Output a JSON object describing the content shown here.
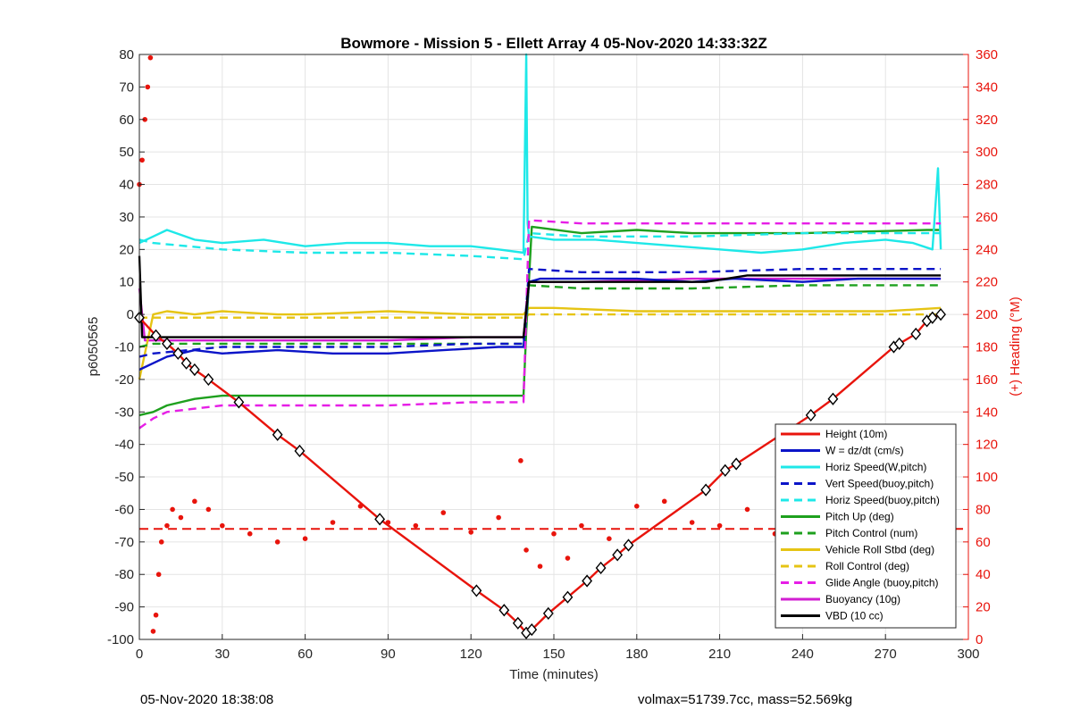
{
  "chart_data": {
    "type": "line",
    "title": "Bowmore - Mission 5 - Ellett Array 4 05-Nov-2020 14:33:32Z",
    "xlabel": "Time (minutes)",
    "ylabel_left": "p6050565",
    "ylabel_right": "(+) Heading (°M)",
    "xlim": [
      0,
      300
    ],
    "ylim_left": [
      -100,
      80
    ],
    "ylim_right": [
      0,
      360
    ],
    "x_ticks": [
      0,
      30,
      60,
      90,
      120,
      150,
      180,
      210,
      240,
      270,
      300
    ],
    "y_ticks_left": [
      80,
      70,
      60,
      50,
      40,
      30,
      20,
      10,
      0,
      -10,
      -20,
      -30,
      -40,
      -50,
      -60,
      -70,
      -80,
      -90,
      -100
    ],
    "y_ticks_right": [
      360,
      340,
      320,
      300,
      280,
      260,
      240,
      220,
      200,
      180,
      160,
      140,
      120,
      100,
      80,
      60,
      40,
      20,
      0
    ],
    "grid": true,
    "legend_position": "bottom-right",
    "colors": {
      "height": "#e8140c",
      "w": "#0b14c8",
      "horiz_speed": "#1ee8e8",
      "pitch": "#1ea01e",
      "roll": "#e6c414",
      "glide": "#e61ee6",
      "buoyancy": "#d21ed2",
      "vbd": "#000000",
      "heading": "#e8140c",
      "right_axis": "#e8140c"
    },
    "series": [
      {
        "name": "Height (10m)",
        "style": "solid",
        "color": "#e8140c",
        "markers": "diamond",
        "x": [
          0,
          6,
          10,
          14,
          17,
          20,
          25,
          36,
          50,
          58,
          87,
          122,
          132,
          137,
          140,
          142,
          148,
          155,
          162,
          167,
          173,
          177,
          205,
          212,
          216,
          243,
          251,
          273,
          275,
          281,
          285,
          287,
          290
        ],
        "y": [
          -1,
          -6.5,
          -9,
          -12,
          -15,
          -17,
          -20,
          -27,
          -37,
          -42,
          -63,
          -85,
          -91,
          -95,
          -98,
          -97,
          -92,
          -87,
          -82,
          -78,
          -74,
          -71,
          -54,
          -48,
          -46,
          -31,
          -26,
          -10,
          -9,
          -6,
          -2,
          -1,
          0
        ]
      },
      {
        "name": "W = dz/dt (cm/s)",
        "style": "solid",
        "color": "#0b14c8",
        "x": [
          0,
          5,
          10,
          20,
          30,
          50,
          70,
          90,
          110,
          130,
          139,
          141,
          145,
          160,
          180,
          200,
          215,
          240,
          260,
          280,
          290
        ],
        "y": [
          -17,
          -15,
          -13,
          -11,
          -12,
          -11,
          -12,
          -12,
          -11,
          -10,
          -10,
          10,
          11,
          11,
          11,
          10,
          11,
          10,
          11,
          11,
          11
        ]
      },
      {
        "name": "Horiz Speed(W,pitch)",
        "style": "solid",
        "color": "#1ee8e8",
        "x": [
          0,
          5,
          10,
          20,
          30,
          45,
          60,
          75,
          90,
          105,
          120,
          130,
          139,
          140,
          140.5,
          141,
          150,
          165,
          180,
          195,
          210,
          225,
          240,
          255,
          270,
          280,
          287,
          289,
          290
        ],
        "y": [
          22,
          24,
          26,
          23,
          22,
          23,
          21,
          22,
          22,
          21,
          21,
          20,
          19,
          80,
          28,
          24,
          23,
          23,
          22,
          21,
          20,
          19,
          20,
          22,
          23,
          22,
          20,
          45,
          20
        ]
      },
      {
        "name": "Vert Speed(buoy,pitch)",
        "style": "dashed",
        "color": "#0b14c8",
        "x": [
          0,
          5,
          30,
          60,
          90,
          120,
          139,
          141,
          160,
          200,
          240,
          290
        ],
        "y": [
          -13,
          -12,
          -10,
          -10,
          -10,
          -9,
          -9,
          14,
          13,
          13,
          14,
          14
        ]
      },
      {
        "name": "Horiz Speed(buoy,pitch)",
        "style": "dashed",
        "color": "#1ee8e8",
        "x": [
          0,
          5,
          30,
          60,
          90,
          120,
          139,
          141,
          160,
          200,
          240,
          290
        ],
        "y": [
          23,
          22,
          20,
          19,
          19,
          18,
          17,
          25,
          24,
          24,
          25,
          25
        ]
      },
      {
        "name": "Pitch Up (deg)",
        "style": "solid",
        "color": "#1ea01e",
        "x": [
          0,
          5,
          10,
          20,
          30,
          50,
          60,
          90,
          120,
          139,
          140,
          142,
          160,
          180,
          200,
          240,
          285,
          290
        ],
        "y": [
          -31,
          -30,
          -28,
          -26,
          -25,
          -25,
          -25,
          -25,
          -25,
          -25,
          -5,
          27,
          25,
          26,
          25,
          25,
          26,
          26
        ]
      },
      {
        "name": "Pitch Control (num)",
        "style": "dashed",
        "color": "#1ea01e",
        "x": [
          0,
          5,
          30,
          60,
          90,
          139,
          141,
          160,
          200,
          240,
          290
        ],
        "y": [
          -10,
          -9,
          -9,
          -9,
          -9,
          -9,
          9,
          8,
          8,
          9,
          9
        ]
      },
      {
        "name": "Vehicle Roll Stbd (deg)",
        "style": "solid",
        "color": "#e6c414",
        "x": [
          0,
          5,
          10,
          20,
          30,
          50,
          60,
          90,
          120,
          139,
          141,
          150,
          180,
          210,
          240,
          270,
          290
        ],
        "y": [
          -20,
          0,
          1,
          0,
          1,
          0,
          0,
          1,
          0,
          0,
          2,
          2,
          1,
          1,
          1,
          1,
          2
        ]
      },
      {
        "name": "Roll Control (deg)",
        "style": "dashed",
        "color": "#e6c414",
        "x": [
          0,
          30,
          60,
          90,
          120,
          139,
          141,
          180,
          210,
          240,
          270,
          290
        ],
        "y": [
          -1,
          -1,
          -1,
          -1,
          -1,
          -1,
          0,
          0,
          0,
          0,
          0,
          0
        ]
      },
      {
        "name": "Glide Angle (buoy,pitch)",
        "style": "dashed",
        "color": "#e61ee6",
        "x": [
          0,
          5,
          10,
          30,
          60,
          90,
          120,
          139,
          141,
          160,
          200,
          240,
          290
        ],
        "y": [
          -35,
          -32,
          -30,
          -28,
          -28,
          -28,
          -27,
          -27,
          29,
          28,
          28,
          28,
          28
        ]
      },
      {
        "name": "Buoyancy (10g)",
        "style": "solid",
        "color": "#d21ed2",
        "x": [
          0,
          2,
          10,
          30,
          60,
          90,
          120,
          139,
          141,
          160,
          200,
          240,
          290
        ],
        "y": [
          8,
          -8,
          -8,
          -8,
          -8,
          -8,
          -7,
          -7,
          10,
          10,
          11,
          11,
          11
        ]
      },
      {
        "name": "VBD (10 cc)",
        "style": "solid",
        "color": "#000000",
        "x": [
          0,
          1,
          2,
          10,
          30,
          60,
          90,
          120,
          139,
          141,
          150,
          180,
          205,
          220,
          250,
          280,
          290
        ],
        "y": [
          18,
          -7,
          -7,
          -7,
          -7,
          -7,
          -7,
          -7,
          -7,
          10,
          10,
          10,
          10,
          12,
          12,
          12,
          12
        ]
      }
    ],
    "heading": {
      "axis": "right",
      "reference_line": 68,
      "x": [
        0,
        1,
        2,
        3,
        4,
        5,
        6,
        7,
        8,
        10,
        12,
        15,
        20,
        25,
        30,
        40,
        50,
        60,
        70,
        80,
        90,
        100,
        110,
        120,
        130,
        138,
        140,
        145,
        150,
        155,
        160,
        170,
        180,
        190,
        200,
        210,
        220,
        230,
        240,
        250,
        260,
        270,
        280,
        285,
        290
      ],
      "y": [
        280,
        295,
        320,
        340,
        358,
        5,
        15,
        40,
        60,
        70,
        80,
        75,
        85,
        80,
        70,
        65,
        60,
        62,
        72,
        82,
        72,
        70,
        78,
        66,
        75,
        110,
        55,
        45,
        65,
        50,
        70,
        62,
        82,
        85,
        72,
        70,
        80,
        65,
        70,
        72,
        60,
        62,
        80,
        58,
        30
      ]
    }
  },
  "footer": {
    "left": "05-Nov-2020 18:38:08",
    "right": "volmax=51739.7cc, mass=52.569kg"
  }
}
